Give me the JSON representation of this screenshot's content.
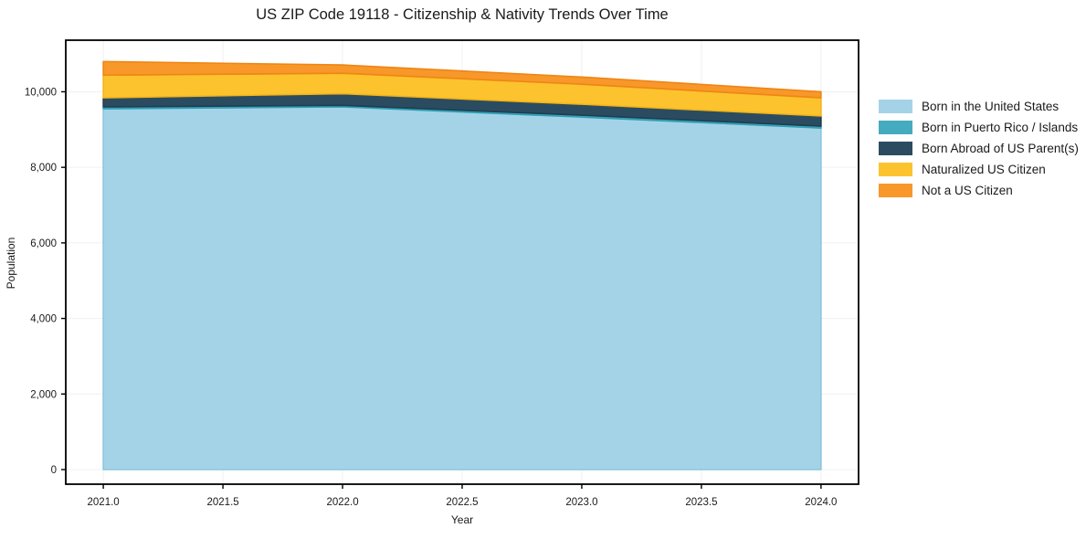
{
  "chart_data": {
    "type": "area",
    "stacked": true,
    "title": "US ZIP Code 19118 - Citizenship & Nativity Trends Over Time",
    "xlabel": "Year",
    "ylabel": "Population",
    "x": [
      2021,
      2022,
      2023,
      2024
    ],
    "series": [
      {
        "name": "Born in the United States",
        "values": [
          9550,
          9600,
          9330,
          9040
        ],
        "fill": "#a4d3e8",
        "edge": "#8cc5de"
      },
      {
        "name": "Born in Puerto Rico / Islands",
        "values": [
          50,
          40,
          50,
          50
        ],
        "fill": "#45abbf",
        "edge": "#2d9fb5"
      },
      {
        "name": "Born Abroad of US Parent(s)",
        "values": [
          240,
          310,
          290,
          270
        ],
        "fill": "#2b4c60",
        "edge": "#203d4e"
      },
      {
        "name": "Naturalized US Citizen",
        "values": [
          600,
          540,
          530,
          480
        ],
        "fill": "#fcc32e",
        "edge": "#f4b418"
      },
      {
        "name": "Not a US Citizen",
        "values": [
          360,
          220,
          190,
          160
        ],
        "fill": "#f8982a",
        "edge": "#ef8514"
      }
    ],
    "x_ticks": [
      {
        "value": 2021.0,
        "label": "2021.0"
      },
      {
        "value": 2021.5,
        "label": "2021.5"
      },
      {
        "value": 2022.0,
        "label": "2022.0"
      },
      {
        "value": 2022.5,
        "label": "2022.5"
      },
      {
        "value": 2023.0,
        "label": "2023.0"
      },
      {
        "value": 2023.5,
        "label": "2023.5"
      },
      {
        "value": 2024.0,
        "label": "2024.0"
      }
    ],
    "y_ticks": [
      {
        "value": 0,
        "label": "0"
      },
      {
        "value": 2000,
        "label": "2,000"
      },
      {
        "value": 4000,
        "label": "4,000"
      },
      {
        "value": 6000,
        "label": "6,000"
      },
      {
        "value": 8000,
        "label": "8,000"
      },
      {
        "value": 10000,
        "label": "10,000"
      }
    ],
    "xlim": [
      2020.843,
      2024.157
    ],
    "ylim": [
      -387,
      11365
    ],
    "grid": true,
    "legend_position": "right-outside",
    "colors": {
      "background": "#ffffff",
      "grid": "#f0f0f0",
      "spine": "#000000",
      "text": "#1a1a1a"
    }
  }
}
